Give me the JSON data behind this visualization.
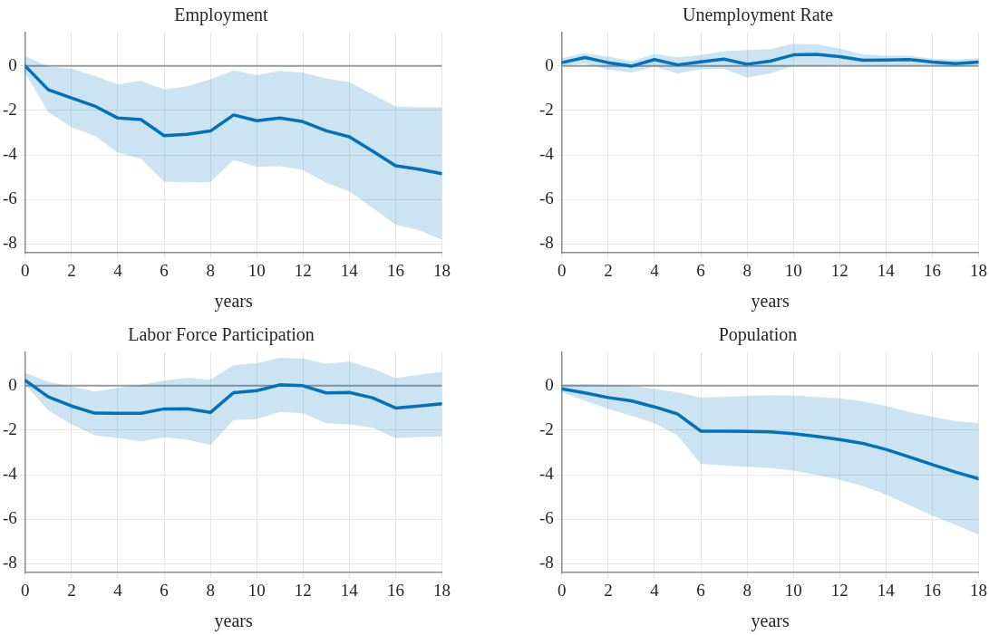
{
  "chart_data": [
    {
      "type": "line",
      "title": "Employment",
      "xlabel": "years",
      "x": [
        0,
        1,
        2,
        3,
        4,
        5,
        6,
        7,
        8,
        9,
        10,
        11,
        12,
        13,
        14,
        15,
        16,
        17,
        18
      ],
      "xlim": [
        0,
        18
      ],
      "xticks": [
        0,
        2,
        4,
        6,
        8,
        10,
        12,
        14,
        16,
        18
      ],
      "ylim": [
        -8.4,
        1.5
      ],
      "yticks": [
        -8,
        -6,
        -4,
        -2,
        0
      ],
      "grid": true,
      "legend": false,
      "ref_lines": [
        {
          "axis": "y",
          "value": 0,
          "color": "#9a9a9a"
        }
      ],
      "series": [
        {
          "color": "#0072bd",
          "values": [
            0,
            -1.07,
            -1.44,
            -1.8,
            -2.34,
            -2.41,
            -3.13,
            -3.07,
            -2.92,
            -2.2,
            -2.46,
            -2.34,
            -2.5,
            -2.91,
            -3.18,
            -3.82,
            -4.48,
            -4.64,
            -4.84
          ],
          "upper": [
            0.45,
            -0.03,
            -0.12,
            -0.44,
            -0.82,
            -0.67,
            -1.05,
            -0.91,
            -0.6,
            -0.2,
            -0.41,
            -0.22,
            -0.3,
            -0.56,
            -0.73,
            -1.27,
            -1.82,
            -1.86,
            -1.86
          ],
          "lower": [
            -0.33,
            -2.07,
            -2.75,
            -3.14,
            -3.89,
            -4.18,
            -5.2,
            -5.24,
            -5.22,
            -4.23,
            -4.52,
            -4.5,
            -4.68,
            -5.25,
            -5.63,
            -6.38,
            -7.13,
            -7.37,
            -7.81
          ]
        }
      ]
    },
    {
      "type": "line",
      "title": "Unemployment Rate",
      "xlabel": "years",
      "x": [
        0,
        1,
        2,
        3,
        4,
        5,
        6,
        7,
        8,
        9,
        10,
        11,
        12,
        13,
        14,
        15,
        16,
        17,
        18
      ],
      "xlim": [
        0,
        18
      ],
      "xticks": [
        0,
        2,
        4,
        6,
        8,
        10,
        12,
        14,
        16,
        18
      ],
      "ylim": [
        -8.4,
        1.5
      ],
      "yticks": [
        -8,
        -6,
        -4,
        -2,
        0
      ],
      "grid": true,
      "legend": false,
      "ref_lines": [
        {
          "axis": "y",
          "value": 0,
          "color": "#9a9a9a"
        }
      ],
      "series": [
        {
          "color": "#0072bd",
          "values": [
            0.15,
            0.38,
            0.15,
            -0.01,
            0.29,
            0.05,
            0.19,
            0.31,
            0.08,
            0.22,
            0.5,
            0.52,
            0.42,
            0.26,
            0.27,
            0.29,
            0.18,
            0.11,
            0.18
          ],
          "upper": [
            0.35,
            0.58,
            0.42,
            0.22,
            0.53,
            0.39,
            0.49,
            0.67,
            0.72,
            0.76,
            1.0,
            0.97,
            0.79,
            0.52,
            0.46,
            0.46,
            0.33,
            0.29,
            0.35
          ],
          "lower": [
            0,
            0.11,
            -0.16,
            -0.3,
            -0.03,
            -0.33,
            -0.15,
            -0.12,
            -0.53,
            -0.33,
            0,
            0,
            0.03,
            -0.01,
            0,
            0.01,
            0.01,
            -0.03,
            0.05
          ]
        }
      ]
    },
    {
      "type": "line",
      "title": "Labor Force Participation",
      "xlabel": "years",
      "x": [
        0,
        1,
        2,
        3,
        4,
        5,
        6,
        7,
        8,
        9,
        10,
        11,
        12,
        13,
        14,
        15,
        16,
        17,
        18
      ],
      "xlim": [
        0,
        18
      ],
      "xticks": [
        0,
        2,
        4,
        6,
        8,
        10,
        12,
        14,
        16,
        18
      ],
      "ylim": [
        -8.4,
        1.5
      ],
      "yticks": [
        -8,
        -6,
        -4,
        -2,
        0
      ],
      "grid": true,
      "legend": false,
      "ref_lines": [
        {
          "axis": "y",
          "value": 0,
          "color": "#9a9a9a"
        }
      ],
      "series": [
        {
          "color": "#0072bd",
          "values": [
            0.24,
            -0.5,
            -0.91,
            -1.23,
            -1.24,
            -1.24,
            -1.04,
            -1.03,
            -1.2,
            -0.31,
            -0.22,
            0.04,
            0,
            -0.32,
            -0.3,
            -0.54,
            -1.0,
            -0.91,
            -0.81
          ],
          "upper": [
            0.58,
            0.18,
            -0.03,
            -0.26,
            -0.09,
            0.04,
            0.24,
            0.35,
            0.28,
            0.92,
            1.01,
            1.26,
            1.23,
            0.99,
            1.08,
            0.78,
            0.35,
            0.49,
            0.62
          ],
          "lower": [
            0.04,
            -1.11,
            -1.74,
            -2.22,
            -2.35,
            -2.5,
            -2.32,
            -2.43,
            -2.66,
            -1.54,
            -1.49,
            -1.18,
            -1.24,
            -1.69,
            -1.74,
            -1.88,
            -2.36,
            -2.3,
            -2.28
          ]
        }
      ]
    },
    {
      "type": "line",
      "title": "Population",
      "xlabel": "years",
      "x": [
        0,
        1,
        2,
        3,
        4,
        5,
        6,
        7,
        8,
        9,
        10,
        11,
        12,
        13,
        14,
        15,
        16,
        17,
        18
      ],
      "xlim": [
        0,
        18
      ],
      "xticks": [
        0,
        2,
        4,
        6,
        8,
        10,
        12,
        14,
        16,
        18
      ],
      "ylim": [
        -8.4,
        1.5
      ],
      "yticks": [
        -8,
        -6,
        -4,
        -2,
        0
      ],
      "grid": true,
      "legend": false,
      "ref_lines": [
        {
          "axis": "y",
          "value": 0,
          "color": "#9a9a9a"
        }
      ],
      "series": [
        {
          "color": "#0072bd",
          "values": [
            -0.14,
            -0.32,
            -0.53,
            -0.68,
            -0.95,
            -1.27,
            -2.04,
            -2.04,
            -2.05,
            -2.07,
            -2.15,
            -2.28,
            -2.42,
            -2.59,
            -2.86,
            -3.2,
            -3.54,
            -3.88,
            -4.18
          ],
          "upper": [
            0.07,
            0.07,
            0.04,
            0,
            -0.14,
            -0.3,
            -0.53,
            -0.5,
            -0.45,
            -0.42,
            -0.43,
            -0.5,
            -0.57,
            -0.7,
            -0.91,
            -1.18,
            -1.39,
            -1.58,
            -1.68
          ],
          "lower": [
            -0.3,
            -0.68,
            -1.04,
            -1.35,
            -1.69,
            -2.23,
            -3.51,
            -3.58,
            -3.64,
            -3.7,
            -3.81,
            -4.01,
            -4.22,
            -4.51,
            -4.89,
            -5.36,
            -5.84,
            -6.24,
            -6.68
          ]
        }
      ]
    }
  ]
}
